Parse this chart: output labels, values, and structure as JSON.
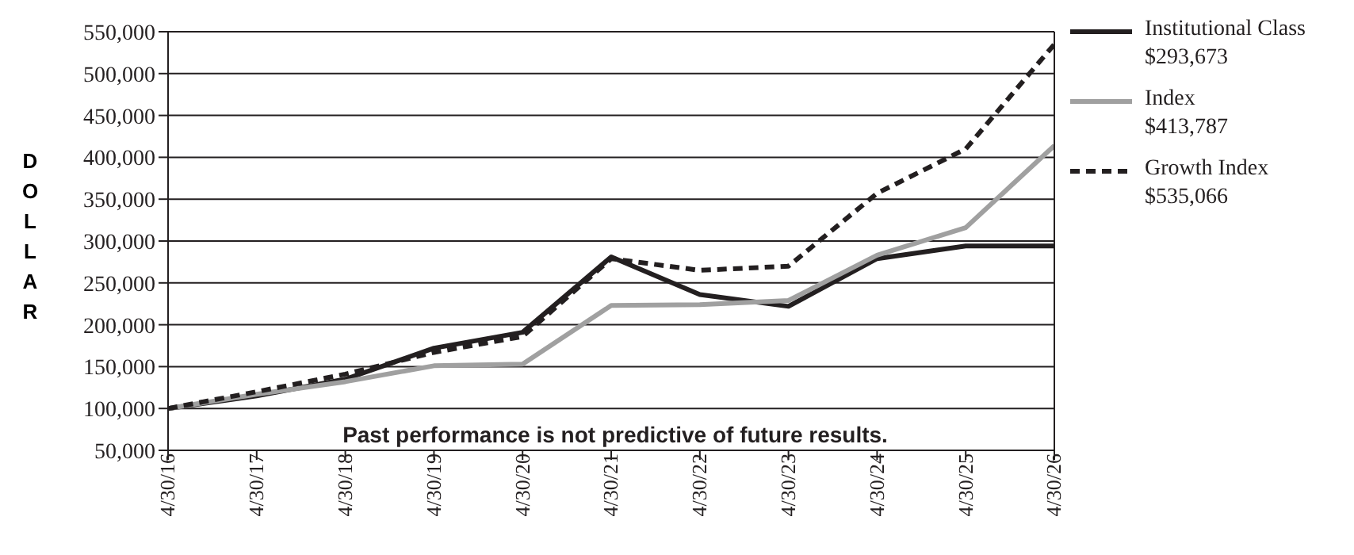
{
  "chart_data": {
    "type": "line",
    "ylabel": "DOLLAR",
    "categories": [
      "4/30/16",
      "4/30/17",
      "4/30/18",
      "4/30/19",
      "4/30/20",
      "4/30/21",
      "4/30/22",
      "4/30/23",
      "4/30/24",
      "4/30/25",
      "4/30/26"
    ],
    "series": [
      {
        "name": "Institutional Class\n$293,673",
        "color": "#231f20",
        "line_style": "solid",
        "values": [
          100000,
          115000,
          135000,
          172000,
          191000,
          281000,
          236000,
          222000,
          279000,
          294000,
          294000
        ]
      },
      {
        "name": "Index\n$413,787",
        "color": "#a0a0a0",
        "line_style": "solid",
        "values": [
          100000,
          117000,
          132000,
          151000,
          153000,
          223000,
          224000,
          229000,
          283000,
          316000,
          414000
        ]
      },
      {
        "name": "Growth Index\n$535,066",
        "color": "#231f20",
        "line_style": "dashed",
        "values": [
          100000,
          120000,
          141000,
          167000,
          186000,
          279000,
          265000,
          270000,
          357000,
          410000,
          535000
        ]
      }
    ],
    "ylim": [
      50000,
      550000
    ],
    "yticks": [
      {
        "value": 50000,
        "label": "50,000"
      },
      {
        "value": 100000,
        "label": "100,000"
      },
      {
        "value": 150000,
        "label": "150,000"
      },
      {
        "value": 200000,
        "label": "200,000"
      },
      {
        "value": 250000,
        "label": "250,000"
      },
      {
        "value": 300000,
        "label": "300,000"
      },
      {
        "value": 350000,
        "label": "350,000"
      },
      {
        "value": 400000,
        "label": "400,000"
      },
      {
        "value": 450000,
        "label": "450,000"
      },
      {
        "value": 500000,
        "label": "500,000"
      },
      {
        "value": 550000,
        "label": "550,000"
      }
    ],
    "grid": "y",
    "legend": "right",
    "marker": "none",
    "annotations": [
      "Past performance is not predictive of future results."
    ]
  }
}
